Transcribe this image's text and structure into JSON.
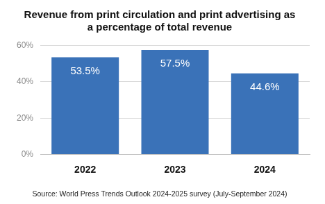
{
  "chart_data": {
    "type": "bar",
    "title": [
      "Revenue from print circulation and print advertising as",
      "a percentage of total revenue"
    ],
    "source": "Source: World Press Trends Outlook 2024-2025 survey (July-September 2024)",
    "categories": [
      "2022",
      "2023",
      "2024"
    ],
    "values": [
      53.5,
      57.5,
      44.6
    ],
    "value_labels": [
      "53.5%",
      "57.5%",
      "44.6%"
    ],
    "data_labels": true,
    "color": "#3a72b8",
    "ylim": [
      0,
      60
    ],
    "yticks": [
      {
        "value": 0,
        "label": "0%"
      },
      {
        "value": 20,
        "label": "20%"
      },
      {
        "value": 40,
        "label": "40%"
      },
      {
        "value": 60,
        "label": "60%"
      }
    ],
    "grid": true
  }
}
